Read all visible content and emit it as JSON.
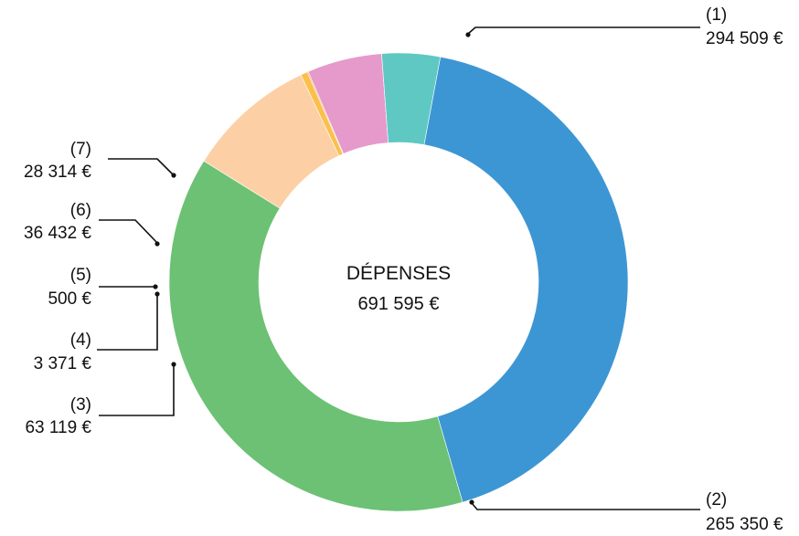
{
  "chart_data": {
    "type": "pie",
    "donut": true,
    "title": "DÉPENSES",
    "total_label": "691 595 €",
    "slices": [
      {
        "id": "1",
        "label": "(1)",
        "value": 294509,
        "value_label": "294 509 €",
        "color": "#3d96d4"
      },
      {
        "id": "2",
        "label": "(2)",
        "value": 265350,
        "value_label": "265 350 €",
        "color": "#6cc174"
      },
      {
        "id": "3",
        "label": "(3)",
        "value": 63119,
        "value_label": "63 119 €",
        "color": "#fcd0a4"
      },
      {
        "id": "4",
        "label": "(4)",
        "value": 3371,
        "value_label": "3 371 €",
        "color": "#fbc04c"
      },
      {
        "id": "5",
        "label": "(5)",
        "value": 500,
        "value_label": "500 €",
        "color": "#f08a34"
      },
      {
        "id": "6",
        "label": "(6)",
        "value": 36432,
        "value_label": "36 432 €",
        "color": "#e59acb"
      },
      {
        "id": "7",
        "label": "(7)",
        "value": 28314,
        "value_label": "28 314 €",
        "color": "#5fc8c3"
      }
    ]
  }
}
